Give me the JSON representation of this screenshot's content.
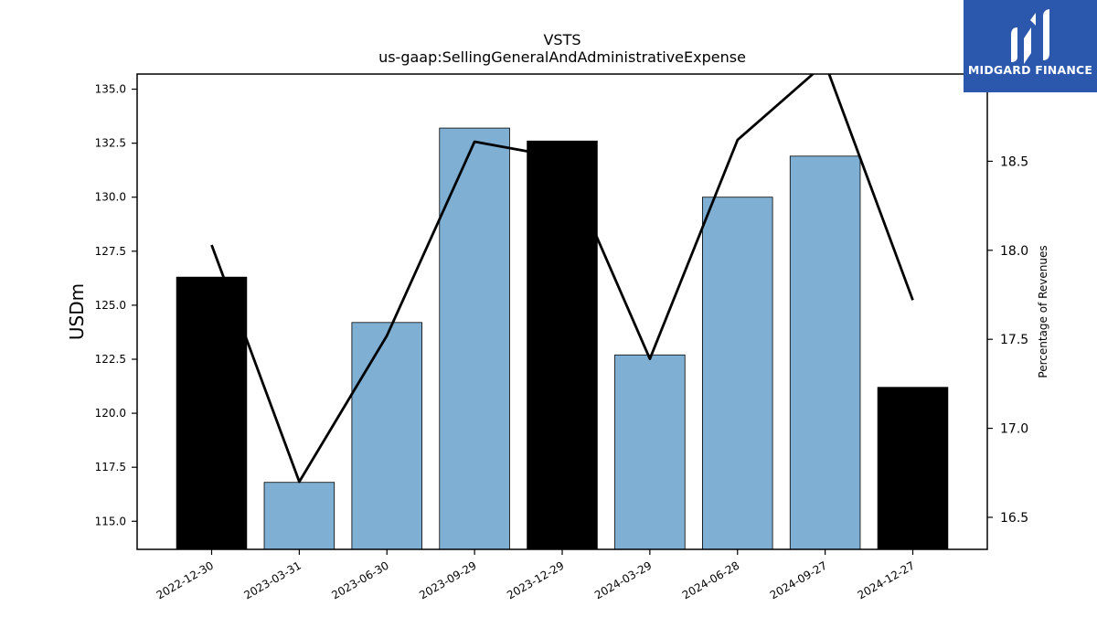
{
  "chart_data": {
    "type": "bar",
    "title": "VSTS",
    "subtitle": "us-gaap:SellingGeneralAndAdministrativeExpense",
    "ylabel": "USDm",
    "y2label": "Percentage of Revenues",
    "categories": [
      "2022-12-30",
      "2023-03-31",
      "2023-06-30",
      "2023-09-29",
      "2023-12-29",
      "2024-03-29",
      "2024-06-28",
      "2024-09-27",
      "2024-12-27"
    ],
    "series": [
      {
        "type": "bar",
        "axis": "left",
        "values": [
          126.3,
          116.8,
          124.2,
          133.2,
          132.6,
          122.7,
          130.0,
          131.9,
          121.2
        ],
        "colors": [
          "#000000",
          "#7fb0d4",
          "#7fb0d4",
          "#7fb0d4",
          "#000000",
          "#7fb0d4",
          "#7fb0d4",
          "#7fb0d4",
          "#000000"
        ]
      },
      {
        "type": "line",
        "axis": "right",
        "values": [
          18.03,
          16.7,
          17.52,
          18.61,
          18.52,
          17.39,
          18.62,
          19.05,
          17.72
        ],
        "color": "#000000"
      }
    ],
    "ylim": [
      113.7,
      135.7
    ],
    "y2lim": [
      16.32,
      18.99
    ],
    "yticks": [
      "115.0",
      "117.5",
      "120.0",
      "122.5",
      "125.0",
      "127.5",
      "130.0",
      "132.5",
      "135.0"
    ],
    "y2ticks": [
      "16.5",
      "17.0",
      "17.5",
      "18.0",
      "18.5"
    ],
    "grid": false,
    "legend": "none"
  },
  "logo": {
    "text": "MIDGARD FINANCE",
    "background": "#2b58ad",
    "icon": "midgard-m-icon"
  }
}
